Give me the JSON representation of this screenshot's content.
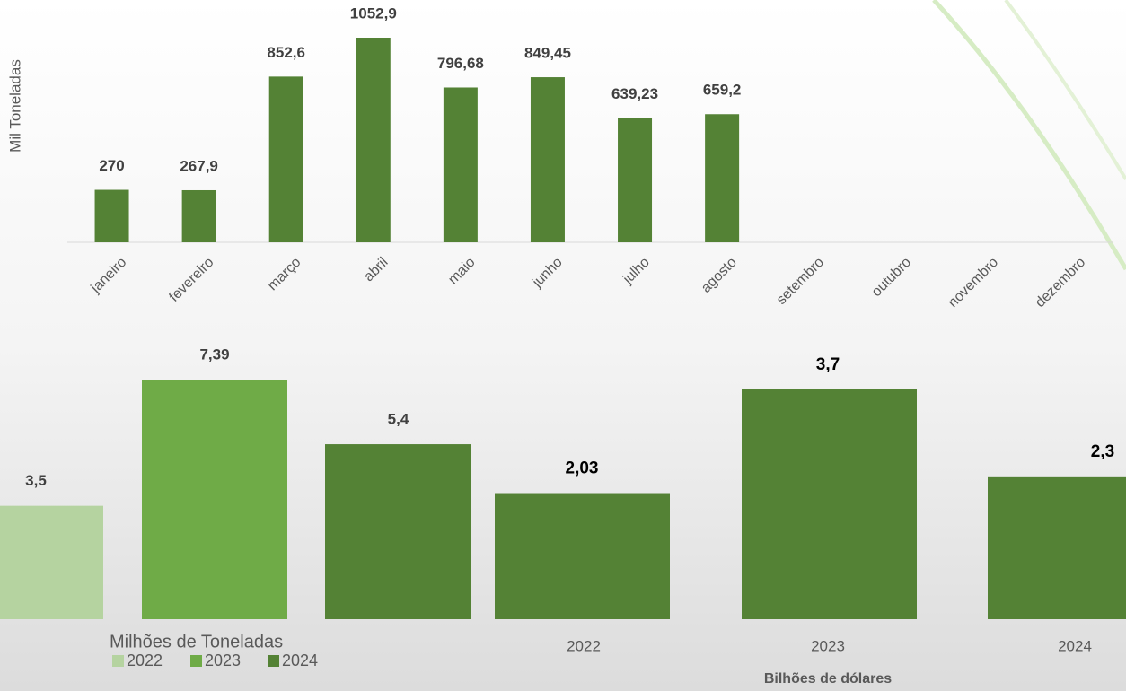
{
  "chart_data": [
    {
      "type": "bar",
      "y_label": "Mil Toneladas",
      "categories": [
        "janeiro",
        "fevereiro",
        "março",
        "abril",
        "maio",
        "junho",
        "julho",
        "agosto",
        "setembro",
        "outubro",
        "novembro",
        "dezembro"
      ],
      "values": [
        270,
        267.9,
        852.6,
        1052.9,
        796.68,
        849.45,
        639.23,
        659.2,
        null,
        null,
        null,
        null
      ],
      "value_labels": [
        "270",
        "267,9",
        "852,6",
        "1052,9",
        "796,68",
        "849,45",
        "639,23",
        "659,2",
        null,
        null,
        null,
        null
      ],
      "color": "#548235"
    },
    {
      "type": "grouped",
      "title": "Milhões de Toneladas",
      "series": [
        {
          "name": "2022",
          "color": "#b5d3a0",
          "values": [
            3.5
          ],
          "value_labels": [
            "3,5"
          ]
        },
        {
          "name": "2023",
          "color": "#6fab47",
          "values": [
            7.39
          ],
          "value_labels": [
            "7,39"
          ]
        },
        {
          "name": "2024",
          "color": "#548235",
          "values": [
            5.4
          ],
          "value_labels": [
            "5,4"
          ]
        }
      ]
    },
    {
      "type": "bar",
      "x_label": "Bilhões de dólares",
      "categories": [
        "2022",
        "2023",
        "2024"
      ],
      "values": [
        2.03,
        3.7,
        2.3
      ],
      "value_labels": [
        "2,03",
        "3,7",
        "2,3"
      ],
      "color": "#548235"
    }
  ]
}
